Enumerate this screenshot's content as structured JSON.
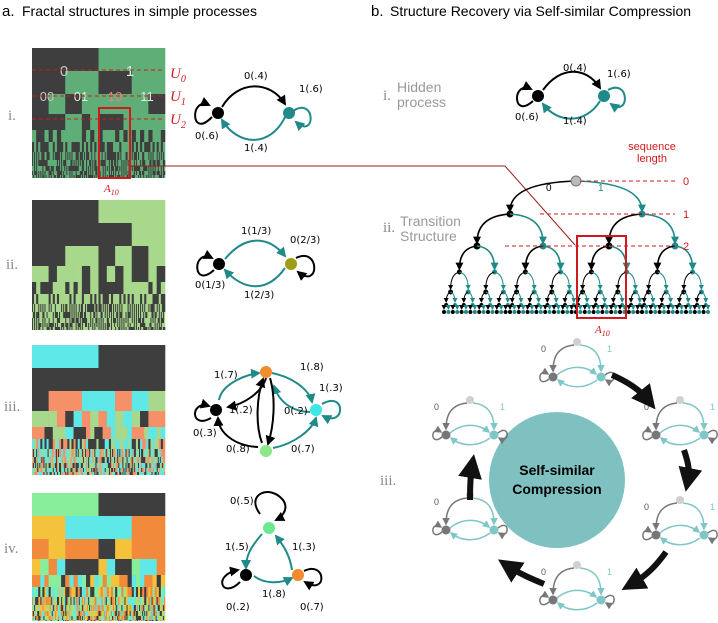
{
  "panel_a": {
    "letter": "a.",
    "title": "Fractal structures in simple processes",
    "rows": [
      {
        "roman": "i.",
        "palette": [
          "#3e3e3e",
          "#5fae78"
        ],
        "edges": {
          "self_left": "0(.6)",
          "top": "0(.4)",
          "right_self": "1(.6)",
          "bottom": "1(.4)"
        }
      },
      {
        "roman": "ii.",
        "palette": [
          "#3e3e3e",
          "#a8d88c"
        ],
        "edges": {
          "self_left": "0(1/3)",
          "top": "1(1/3)",
          "right_self": "0(2/3)",
          "bottom": "1(2/3)"
        }
      },
      {
        "roman": "iii.",
        "palette": [
          "#3e3e3e",
          "#5ee8e8",
          "#a8d88c",
          "#f59068"
        ],
        "edges": {
          "left_self": "0(.3)",
          "ab_out": "1(.7)",
          "ab_back": "1(.2)",
          "bc": "1(.8)",
          "c_self": "1(.3)",
          "cb": "0(.2)",
          "da": "0(.8)",
          "dc": "0(.7)"
        }
      },
      {
        "roman": "iv.",
        "palette": [
          "#88ee9c",
          "#f28a3c",
          "#3e3e3e",
          "#5ee8e8",
          "#f5c23c"
        ],
        "edges": {
          "top_self": "0(.5)",
          "left": "1(.5)",
          "right": "1(.3)",
          "bottom": "1(.8)",
          "left_self": "0(.2)",
          "right_self": "0(.7)"
        }
      }
    ],
    "row_i_cells": {
      "u0": [
        "0",
        "1"
      ],
      "u1": [
        "00",
        "01",
        "10",
        "11"
      ]
    },
    "u_labels": {
      "u0_main": "U",
      "u0_sub": "0",
      "u1_main": "U",
      "u1_sub": "1",
      "u2_main": "U",
      "u2_sub": "2"
    },
    "a10": {
      "main": "A",
      "sub": "10"
    }
  },
  "panel_b": {
    "letter": "b.",
    "title": "Structure Recovery via Self-similar Compression",
    "hidden": {
      "roman": "i.",
      "line1": "Hidden",
      "line2": "process",
      "edges": {
        "self_left": "0(.6)",
        "top": "0(.4)",
        "right_self": "1(.6)",
        "bottom": "1(.4)"
      }
    },
    "transition": {
      "roman": "ii.",
      "line1": "Transition",
      "line2": "Structure",
      "seq_line1": "sequence",
      "seq_line2": "length",
      "lengths": [
        "0",
        "1",
        "2"
      ],
      "root_left": "0",
      "root_right": "1",
      "a10": {
        "main": "A",
        "sub": "10"
      }
    },
    "compression": {
      "roman": "iii.",
      "center_line1": "Self-similar",
      "center_line2": "Compression",
      "symbol_0": "0",
      "symbol_1": "1"
    }
  },
  "colors": {
    "teal": "#1f8a88",
    "red": "#d0191c",
    "circle": "#7fc1c1",
    "light_teal": "#7fc6c6",
    "grey_node": "#777777",
    "light_node": "#d0d0d0"
  }
}
